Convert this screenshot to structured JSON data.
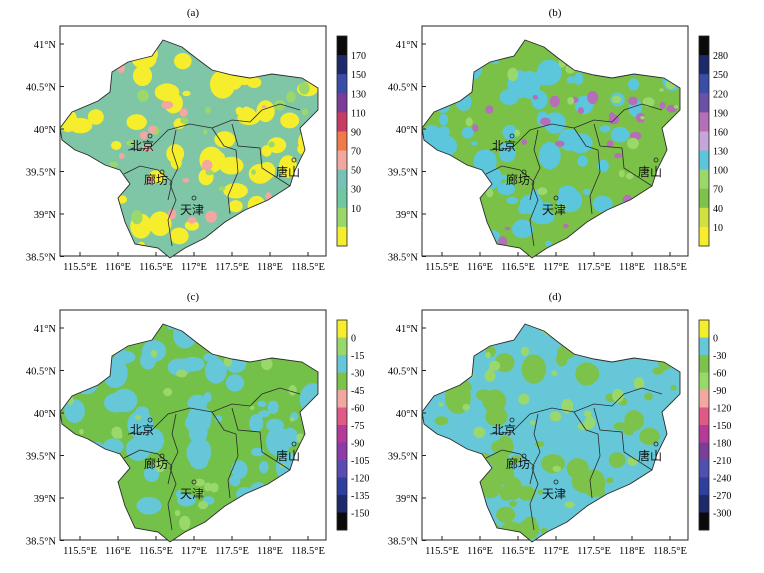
{
  "panels": [
    {
      "label": "(a)",
      "colorbar_ticks": [
        "170",
        "150",
        "130",
        "110",
        "90",
        "70",
        "50",
        "30",
        "10"
      ],
      "colors": [
        "#0a0a0a",
        "#1d2a6c",
        "#3a4ea8",
        "#7a3d98",
        "#c83c64",
        "#f07a4a",
        "#f2a7a0",
        "#77c2b8",
        "#6ec9a3",
        "#9bd86b",
        "#f6ee2c"
      ],
      "base_color": "#7fc6a6",
      "speckle": [
        {
          "color": "#f6ee2c"
        },
        {
          "color": "#9bd86b"
        },
        {
          "color": "#f2a7a0"
        }
      ]
    },
    {
      "label": "(b)",
      "colorbar_ticks": [
        "280",
        "250",
        "220",
        "190",
        "160",
        "130",
        "100",
        "70",
        "40",
        "10"
      ],
      "colors": [
        "#0a0a0a",
        "#1d2a6c",
        "#3a4ea8",
        "#6b51a6",
        "#b46fb8",
        "#c6a6d8",
        "#5cc6dc",
        "#9bd86b",
        "#7dc24a",
        "#cfe040",
        "#f6ee2c"
      ],
      "base_color": "#7bc147",
      "speckle": [
        {
          "color": "#5cc6dc"
        },
        {
          "color": "#b46fb8"
        },
        {
          "color": "#9bd86b"
        }
      ]
    },
    {
      "label": "(c)",
      "colorbar_ticks": [
        "0",
        "-15",
        "-30",
        "-45",
        "-60",
        "-75",
        "-90",
        "-105",
        "-120",
        "-135",
        "-150"
      ],
      "colors": [
        "#f6ee2c",
        "#9bd86b",
        "#66c7d8",
        "#7dc24a",
        "#f2a7a0",
        "#e05a86",
        "#b43c98",
        "#8c3ca8",
        "#5a4cb0",
        "#2f3f9e",
        "#1d2a6c",
        "#0a0a0a"
      ],
      "base_color": "#74c14a",
      "speckle": [
        {
          "color": "#66c7d8"
        },
        {
          "color": "#9bd86b"
        }
      ]
    },
    {
      "label": "(d)",
      "colorbar_ticks": [
        "0",
        "-30",
        "-60",
        "-90",
        "-120",
        "-150",
        "-180",
        "-210",
        "-240",
        "-270",
        "-300"
      ],
      "colors": [
        "#f6ee2c",
        "#66c7d8",
        "#7dc24a",
        "#9bd86b",
        "#f2a7a0",
        "#e05a86",
        "#b43c98",
        "#7a3d98",
        "#4f4fae",
        "#2f3f9e",
        "#1d2a6c",
        "#0a0a0a"
      ],
      "base_color": "#66c7d8",
      "speckle": [
        {
          "color": "#7dc24a"
        },
        {
          "color": "#9bd86b"
        }
      ]
    }
  ],
  "axes": {
    "x_ticks": [
      "115.5°E",
      "116°E",
      "116.5°E",
      "117°E",
      "117.5°E",
      "118°E",
      "118.5°E"
    ],
    "y_ticks": [
      "41°N",
      "40.5°N",
      "40°N",
      "39.5°N",
      "39°N",
      "38.5°N"
    ]
  },
  "places": {
    "beijing": "北京",
    "langfang": "廊坊",
    "tianjin": "天津",
    "tangshan": "唐山"
  }
}
